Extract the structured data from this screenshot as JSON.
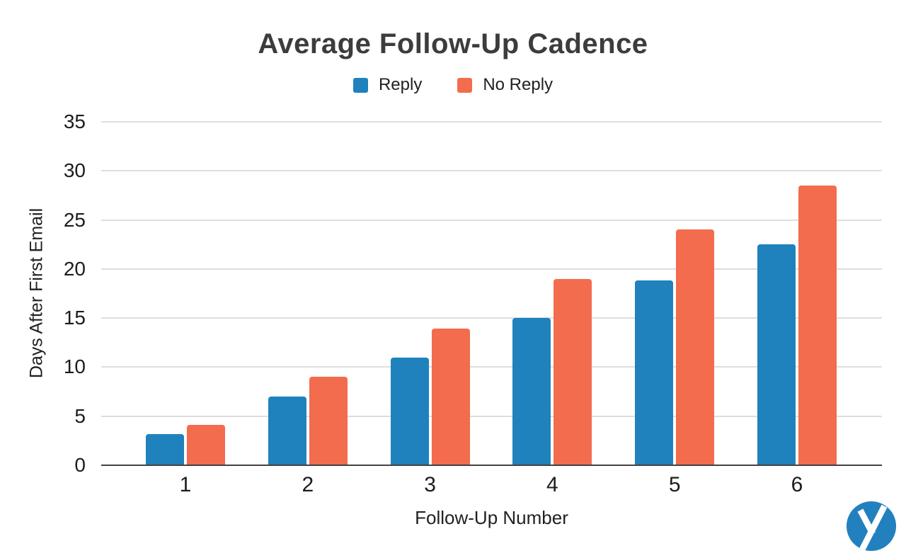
{
  "chart_data": {
    "type": "bar",
    "title": "Average Follow-Up Cadence",
    "xlabel": "Follow-Up Number",
    "ylabel": "Days After First Email",
    "categories": [
      "1",
      "2",
      "3",
      "4",
      "5",
      "6"
    ],
    "series": [
      {
        "name": "Reply",
        "color": "#1f82bc",
        "values": [
          3.2,
          7.0,
          11.0,
          15.0,
          18.8,
          22.5
        ]
      },
      {
        "name": "No Reply",
        "color": "#f26c4d",
        "values": [
          4.1,
          9.0,
          13.9,
          19.0,
          24.0,
          28.5
        ]
      }
    ],
    "y_ticks": [
      0,
      5,
      10,
      15,
      20,
      25,
      30,
      35
    ],
    "ylim": [
      0,
      35
    ],
    "grid": true,
    "legend_position": "top-center",
    "background": "#ffffff"
  },
  "branding": {
    "logo": "yesware-y-logo",
    "logo_color": "#2380be"
  },
  "colors": {
    "title_text": "#3c3c3c",
    "tick_text": "#1c1c1c",
    "gridline": "#dedede",
    "axis_line": "#424242"
  }
}
